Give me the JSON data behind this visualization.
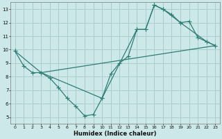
{
  "xlabel": "Humidex (Indice chaleur)",
  "bg_color": "#cce8e8",
  "grid_color": "#aacccc",
  "line_color": "#2d7d74",
  "xlim": [
    -0.5,
    23.5
  ],
  "ylim": [
    4.5,
    13.5
  ],
  "xticks": [
    0,
    1,
    2,
    3,
    4,
    5,
    6,
    7,
    8,
    9,
    10,
    11,
    12,
    13,
    14,
    15,
    16,
    17,
    18,
    19,
    20,
    21,
    22,
    23
  ],
  "yticks": [
    5,
    6,
    7,
    8,
    9,
    10,
    11,
    12,
    13
  ],
  "line1_x": [
    0,
    1,
    2,
    3,
    4,
    5,
    6,
    7,
    8,
    9,
    10,
    11,
    12,
    13,
    14,
    15,
    16,
    17,
    18,
    19,
    20,
    21,
    22,
    23
  ],
  "line1_y": [
    9.9,
    8.8,
    8.3,
    8.3,
    7.9,
    7.2,
    6.4,
    5.8,
    5.1,
    5.2,
    6.4,
    8.2,
    9.0,
    9.5,
    11.5,
    11.5,
    13.3,
    13.0,
    12.6,
    12.0,
    12.1,
    10.9,
    10.6,
    10.3
  ],
  "line2_x": [
    0,
    3,
    10,
    14,
    15,
    16,
    17,
    19,
    22,
    23
  ],
  "line2_y": [
    9.9,
    8.3,
    6.4,
    11.5,
    11.5,
    13.3,
    13.0,
    12.0,
    10.6,
    10.3
  ],
  "line3_x": [
    3,
    23
  ],
  "line3_y": [
    8.3,
    10.3
  ]
}
